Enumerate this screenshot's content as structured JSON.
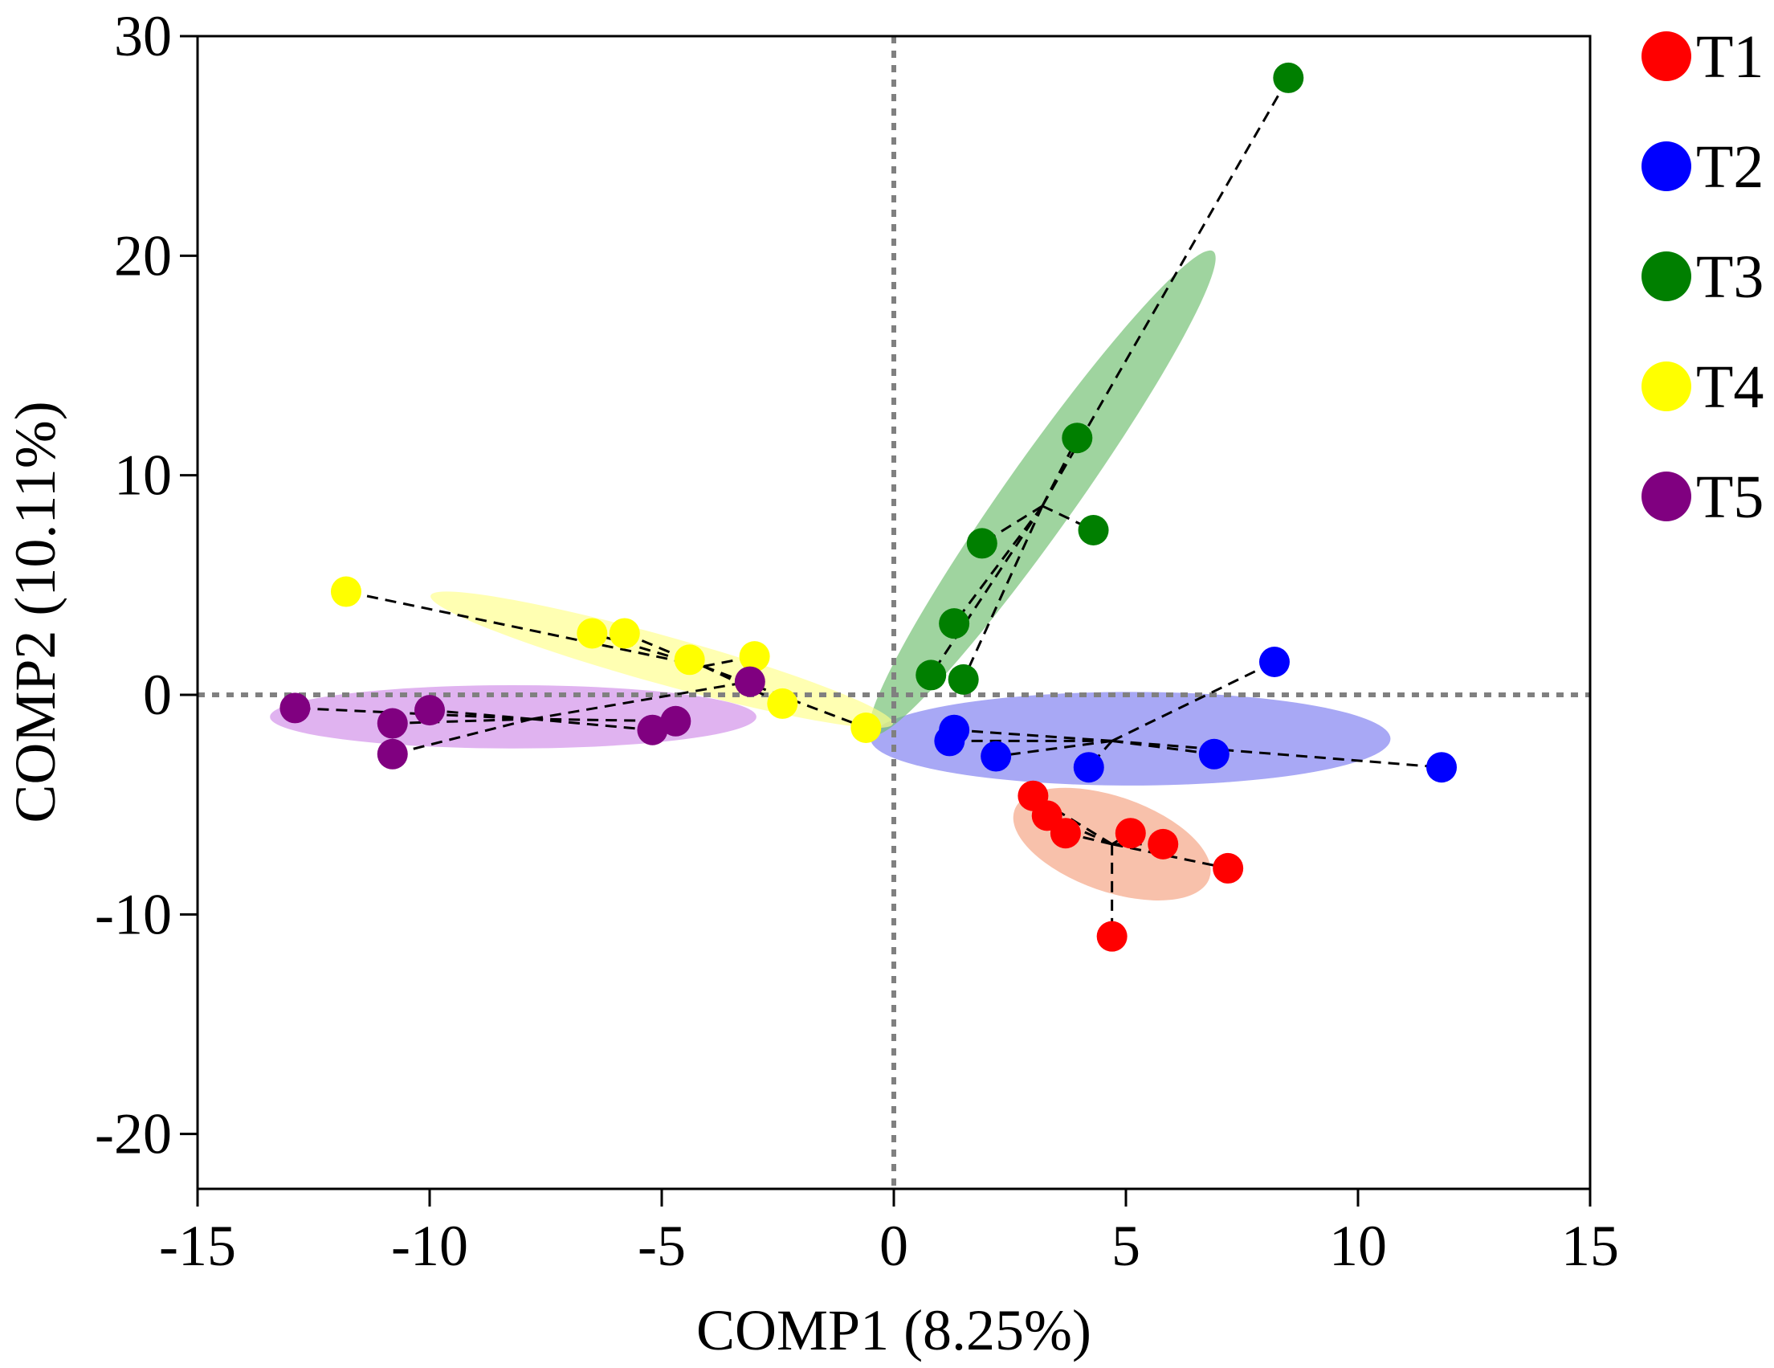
{
  "chart_data": {
    "type": "scatter",
    "title": "",
    "xlabel": "COMP1 (8.25%)",
    "ylabel": "COMP2 (10.11%)",
    "xlim": [
      -15,
      15
    ],
    "ylim": [
      -22.5,
      30
    ],
    "xticks": [
      -15,
      -10,
      -5,
      0,
      5,
      10,
      15
    ],
    "yticks": [
      -20,
      -10,
      0,
      10,
      20,
      30
    ],
    "xtick_labels": [
      "-15",
      "-10",
      "-5",
      "0",
      "5",
      "10",
      "15"
    ],
    "ytick_labels": [
      "-20",
      "-10",
      "0",
      "10",
      "20",
      "30"
    ],
    "grid": false,
    "reference_lines": {
      "x": 0,
      "y": 0,
      "color": "#808080"
    },
    "legend_position": "right",
    "series": [
      {
        "name": "T1",
        "color": "#ff0000",
        "ellipse_color": "#f4a07e",
        "centroid": [
          4.7,
          -6.8
        ],
        "ellipse": {
          "center": [
            4.7,
            -6.8
          ],
          "major": [
            2.1,
            -1.55
          ],
          "minor_ratio": 0.46
        },
        "points": [
          [
            3.0,
            -4.6
          ],
          [
            3.3,
            -5.5
          ],
          [
            3.7,
            -6.3
          ],
          [
            5.1,
            -6.3
          ],
          [
            5.8,
            -6.8
          ],
          [
            7.2,
            -7.9
          ],
          [
            4.7,
            -11.0
          ]
        ]
      },
      {
        "name": "T2",
        "color": "#0000ff",
        "ellipse_color": "#7a7af0",
        "centroid": [
          4.7,
          -2.1
        ],
        "ellipse": {
          "center": [
            5.1,
            -2.0
          ],
          "major": [
            5.6,
            0
          ],
          "minor_ratio": 0.18
        },
        "points": [
          [
            8.2,
            1.5
          ],
          [
            1.3,
            -1.6
          ],
          [
            1.2,
            -2.1
          ],
          [
            2.2,
            -2.8
          ],
          [
            4.2,
            -3.3
          ],
          [
            6.9,
            -2.7
          ],
          [
            11.8,
            -3.3
          ]
        ]
      },
      {
        "name": "T3",
        "color": "#007f00",
        "ellipse_color": "#6cbd6c",
        "centroid": [
          3.2,
          8.6
        ],
        "ellipse": {
          "center": [
            3.2,
            9.2
          ],
          "major": [
            3.68,
            11.0
          ],
          "minor_ratio": 0.12
        },
        "points": [
          [
            8.5,
            28.1
          ],
          [
            3.95,
            11.7
          ],
          [
            4.3,
            7.5
          ],
          [
            1.9,
            6.9
          ],
          [
            1.3,
            3.25
          ],
          [
            0.8,
            0.9
          ],
          [
            1.5,
            0.7
          ]
        ]
      },
      {
        "name": "T4",
        "color": "#ffff00",
        "ellipse_color": "#ffff88",
        "centroid": [
          -4.1,
          1.3
        ],
        "ellipse": {
          "center": [
            -5.0,
            1.6
          ],
          "major": [
            4.98,
            -2.92
          ],
          "minor_ratio": 0.1
        },
        "points": [
          [
            -11.8,
            4.7
          ],
          [
            -6.5,
            2.8
          ],
          [
            -5.8,
            2.8
          ],
          [
            -4.4,
            1.6
          ],
          [
            -3.0,
            1.75
          ],
          [
            -2.4,
            -0.4
          ],
          [
            -0.6,
            -1.5
          ]
        ]
      },
      {
        "name": "T5",
        "color": "#800080",
        "ellipse_color": "#d08ae8",
        "centroid": [
          -7.8,
          -1.1
        ],
        "ellipse": {
          "center": [
            -8.2,
            -1.0
          ],
          "major": [
            5.24,
            0
          ],
          "minor_ratio": 0.13
        },
        "points": [
          [
            -12.9,
            -0.6
          ],
          [
            -10.8,
            -1.3
          ],
          [
            -10.8,
            -2.7
          ],
          [
            -10.0,
            -0.7
          ],
          [
            -5.2,
            -1.6
          ],
          [
            -4.7,
            -1.2
          ],
          [
            -3.1,
            0.6
          ]
        ]
      }
    ]
  }
}
